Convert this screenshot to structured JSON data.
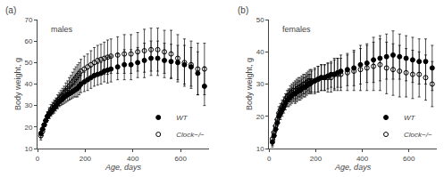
{
  "chart_data": [
    {
      "type": "scatter",
      "title": "(a)",
      "annotations": [
        "males"
      ],
      "x_label": "Age, days",
      "y_label": "Body weight, g",
      "x": [
        14,
        21,
        28,
        35,
        42,
        49,
        56,
        63,
        70,
        77,
        84,
        91,
        98,
        105,
        112,
        119,
        126,
        133,
        140,
        147,
        154,
        161,
        168,
        175,
        182,
        196,
        210,
        224,
        238,
        252,
        266,
        280,
        294,
        308,
        336,
        364,
        392,
        420,
        448,
        476,
        504,
        532,
        560,
        588,
        616,
        644,
        672,
        700
      ],
      "series": [
        {
          "name": "Clock−/−",
          "color": "#000000",
          "marker": "circle-open",
          "values": [
            16,
            18,
            21,
            23,
            25,
            26.5,
            28,
            29,
            30,
            31,
            32,
            33,
            34,
            35,
            36,
            37,
            38,
            39,
            40,
            41,
            42,
            43,
            44,
            45,
            46,
            47,
            48,
            49,
            50,
            51,
            51.5,
            52,
            52.5,
            53,
            53.5,
            54,
            54,
            55,
            55.5,
            56,
            56,
            55,
            54,
            52,
            50,
            49,
            47,
            47
          ],
          "errors": [
            2,
            2,
            2,
            2,
            2,
            2.5,
            2.5,
            2.5,
            2.5,
            2.5,
            3,
            3,
            3,
            3,
            3,
            3.5,
            3.5,
            4,
            4,
            4.5,
            5,
            5,
            5,
            5,
            5.5,
            6,
            6,
            6.5,
            7,
            7,
            7,
            7.5,
            8,
            8,
            8.5,
            9,
            9,
            9,
            10,
            10,
            10,
            10,
            11,
            11,
            11,
            11,
            12,
            12
          ]
        },
        {
          "name": "WT",
          "color": "#000000",
          "marker": "circle",
          "values": [
            17,
            19,
            21,
            23,
            25,
            26,
            27,
            28,
            29,
            30,
            31,
            32,
            32.5,
            33,
            34,
            34.5,
            35,
            35.5,
            36,
            36.5,
            37,
            37.5,
            38,
            39,
            40,
            41,
            42,
            43,
            44,
            44.5,
            45,
            46,
            46.5,
            47,
            48,
            49,
            49,
            50,
            51,
            52,
            52,
            51,
            50.5,
            50,
            49,
            48,
            45,
            39
          ],
          "errors": [
            2,
            2,
            2,
            2,
            2,
            2,
            2,
            2,
            2.5,
            2.5,
            2.5,
            2.5,
            2.5,
            2.5,
            3,
            3,
            3,
            3,
            3,
            3,
            3,
            3.5,
            4,
            4,
            4,
            4.5,
            5,
            5,
            5,
            5,
            5,
            5,
            6,
            6,
            6,
            7,
            7,
            7,
            8,
            8,
            8,
            8,
            8,
            8,
            9,
            9,
            10,
            9
          ]
        }
      ],
      "xlim": [
        0,
        720
      ],
      "xticks": [
        0,
        200,
        400,
        600
      ],
      "ylim": [
        10,
        70
      ],
      "yticks": [
        10,
        20,
        30,
        40,
        50,
        60,
        70
      ],
      "grid": false,
      "legend": "lower right"
    },
    {
      "type": "scatter",
      "title": "(b)",
      "annotations": [
        "females"
      ],
      "x_label": "Age, days",
      "y_label": "Body weight, g",
      "x": [
        14,
        21,
        28,
        35,
        42,
        49,
        56,
        63,
        70,
        77,
        84,
        91,
        98,
        105,
        112,
        119,
        126,
        133,
        140,
        147,
        154,
        161,
        168,
        175,
        182,
        196,
        210,
        224,
        238,
        252,
        266,
        280,
        294,
        308,
        336,
        364,
        392,
        420,
        448,
        476,
        504,
        532,
        560,
        588,
        616,
        644,
        672,
        700
      ],
      "series": [
        {
          "name": "Clock−/−",
          "color": "#000000",
          "marker": "circle-open",
          "values": [
            13,
            15,
            17,
            19,
            21,
            22,
            23,
            24,
            25,
            26,
            26.5,
            27,
            27.5,
            28,
            28,
            28.5,
            29,
            29,
            29.5,
            30,
            30,
            30.5,
            31,
            31,
            31,
            31,
            31.5,
            32,
            32,
            32,
            32,
            33,
            33,
            33,
            33.5,
            34,
            34.5,
            35,
            35.5,
            36,
            35,
            34.5,
            34,
            33.5,
            33,
            33,
            32,
            30
          ],
          "errors": [
            2,
            2,
            2,
            2,
            2,
            2,
            2,
            2,
            2,
            2,
            2,
            2.5,
            2.5,
            2.5,
            3,
            3,
            3,
            3,
            3,
            3,
            3,
            3,
            3,
            3.5,
            3.5,
            4,
            4,
            4,
            4,
            4.5,
            4.5,
            5,
            5,
            5,
            5.5,
            6,
            6.5,
            7,
            7.5,
            8,
            8,
            8,
            8,
            7.5,
            7.5,
            7,
            7,
            7
          ]
        },
        {
          "name": "WT",
          "color": "#000000",
          "marker": "circle",
          "values": [
            12,
            14,
            16,
            18,
            20,
            21,
            22,
            23,
            24,
            25,
            25.5,
            26,
            26.5,
            27,
            27,
            27.5,
            28,
            28,
            28.5,
            29,
            29,
            29.5,
            30,
            30,
            30.5,
            31,
            31.5,
            32,
            32,
            32.5,
            33,
            33,
            33.5,
            34,
            34.5,
            35,
            36,
            36.5,
            37.5,
            38,
            38.5,
            39,
            38.5,
            38,
            37.5,
            37,
            37,
            35
          ],
          "errors": [
            1.5,
            1.5,
            2,
            2,
            2,
            2,
            2,
            2,
            2,
            2,
            2.5,
            2.5,
            2.5,
            2.5,
            3,
            3,
            3,
            3,
            3,
            3,
            3,
            3,
            3,
            3,
            3.5,
            3.5,
            4,
            4,
            4,
            4,
            4,
            4.5,
            4.5,
            5,
            5,
            5.5,
            6,
            6,
            7,
            7,
            7,
            7.5,
            7,
            7,
            7,
            7,
            7,
            7
          ]
        }
      ],
      "xlim": [
        0,
        720
      ],
      "xticks": [
        0,
        200,
        400,
        600
      ],
      "ylim": [
        10,
        50
      ],
      "yticks": [
        10,
        20,
        30,
        40,
        50
      ],
      "grid": false,
      "legend": "lower right"
    }
  ]
}
